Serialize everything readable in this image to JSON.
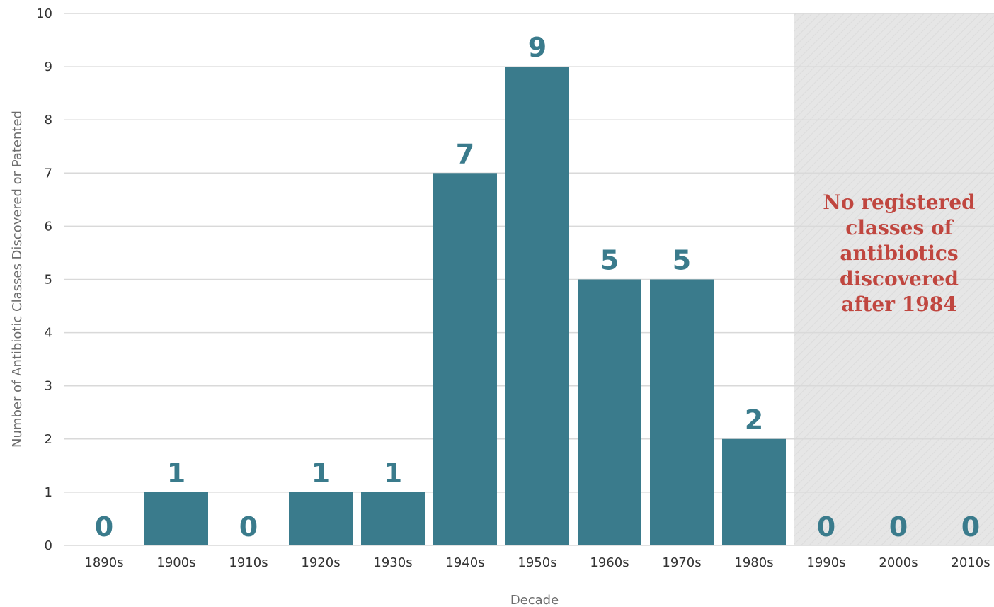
{
  "chart_data": {
    "type": "bar",
    "categories": [
      "1890s",
      "1900s",
      "1910s",
      "1920s",
      "1930s",
      "1940s",
      "1950s",
      "1960s",
      "1970s",
      "1980s",
      "1990s",
      "2000s",
      "2010s"
    ],
    "values": [
      0,
      1,
      0,
      1,
      1,
      7,
      9,
      5,
      5,
      2,
      0,
      0,
      0
    ],
    "data_labels": [
      "0",
      "1",
      "0",
      "1",
      "1",
      "7",
      "9",
      "5",
      "5",
      "2",
      "0",
      "0",
      "0"
    ],
    "xlabel": "Decade",
    "ylabel": "Number of Antibiotic Classes Discovered or Patented",
    "ylim": [
      0,
      10
    ],
    "yticks": [
      "0",
      "1",
      "2",
      "3",
      "4",
      "5",
      "6",
      "7",
      "8",
      "9",
      "10"
    ],
    "grid": true,
    "shaded_region": {
      "from_category": "1990s",
      "to_category": "2010s",
      "annotation": [
        "No registered",
        "classes of",
        "antibiotics",
        "discovered",
        "after 1984"
      ]
    },
    "colors": {
      "bar": "#3a7b8c",
      "label": "#3a7b8c",
      "annotation": "#c0463f",
      "grid": "#d9d9d9",
      "shade": "#e8e8e8"
    }
  }
}
